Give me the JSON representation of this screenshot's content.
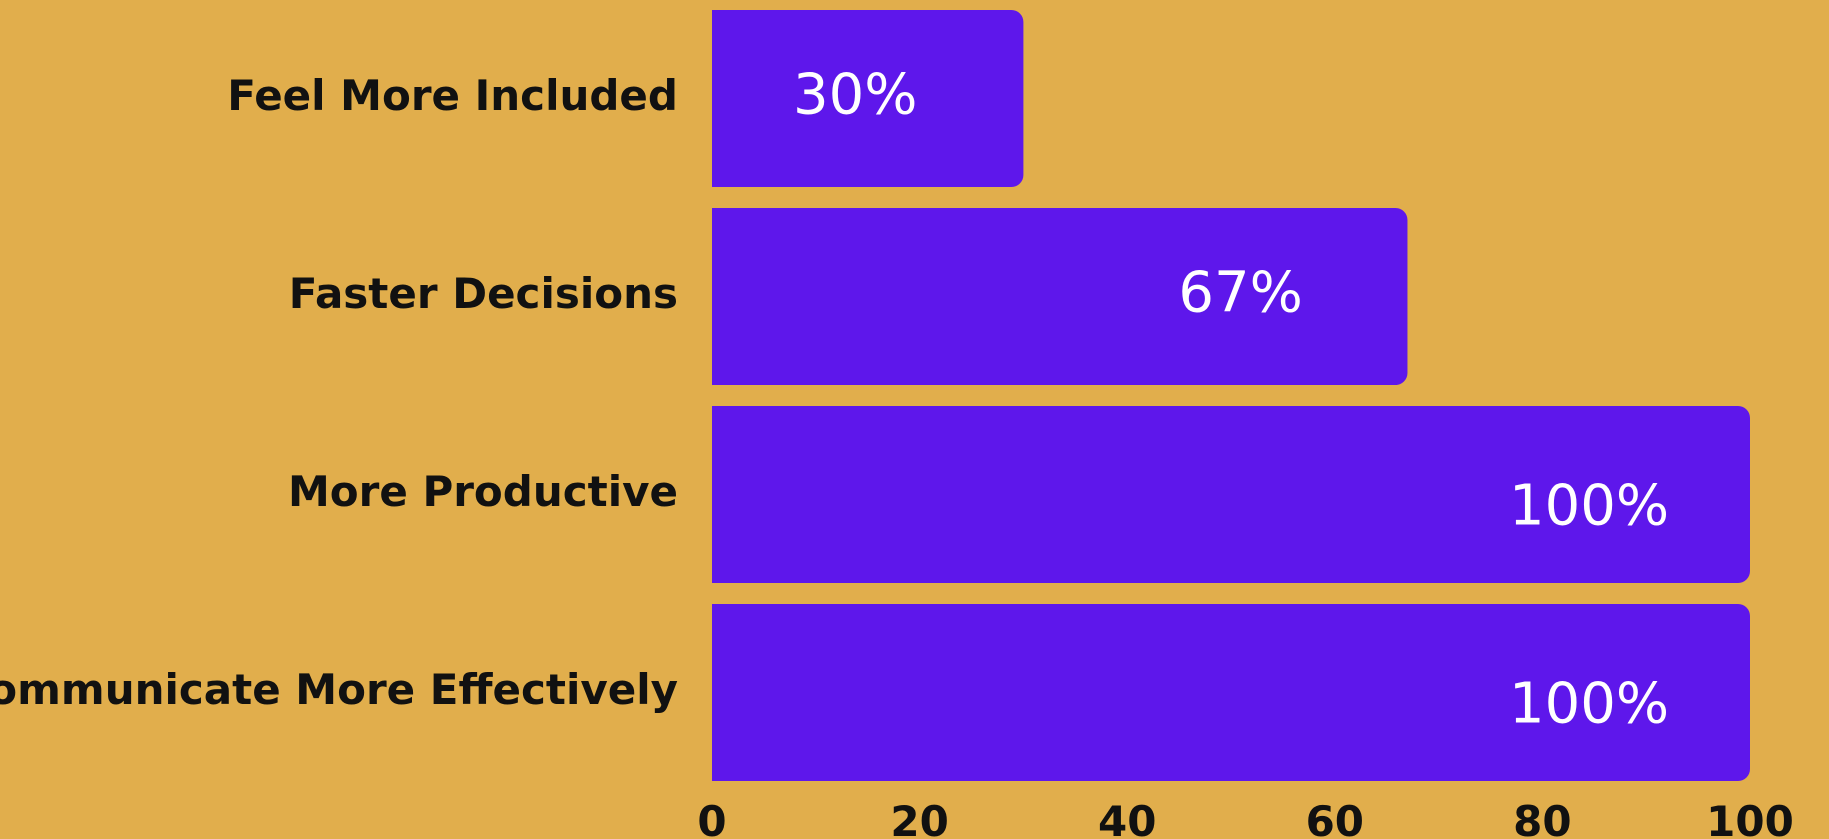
{
  "chart_data": {
    "type": "bar",
    "orientation": "horizontal",
    "categories": [
      "Feel More Included",
      "Faster Decisions",
      "More Productive",
      "Communicate More Effectively"
    ],
    "values": [
      30,
      67,
      100,
      100
    ],
    "value_labels": [
      "30%",
      "67%",
      "100%",
      "100%"
    ],
    "xlim": [
      0,
      100
    ],
    "xticks": [
      0,
      20,
      40,
      60,
      80,
      100
    ],
    "xtick_labels": [
      "0",
      "20",
      "40",
      "60",
      "80",
      "100"
    ],
    "grid": false,
    "legend": "none",
    "colors": {
      "background": "#E1AE4C",
      "bar": "#5E17EB",
      "value_text": "#FFFFFF",
      "label_text": "#111111"
    }
  }
}
